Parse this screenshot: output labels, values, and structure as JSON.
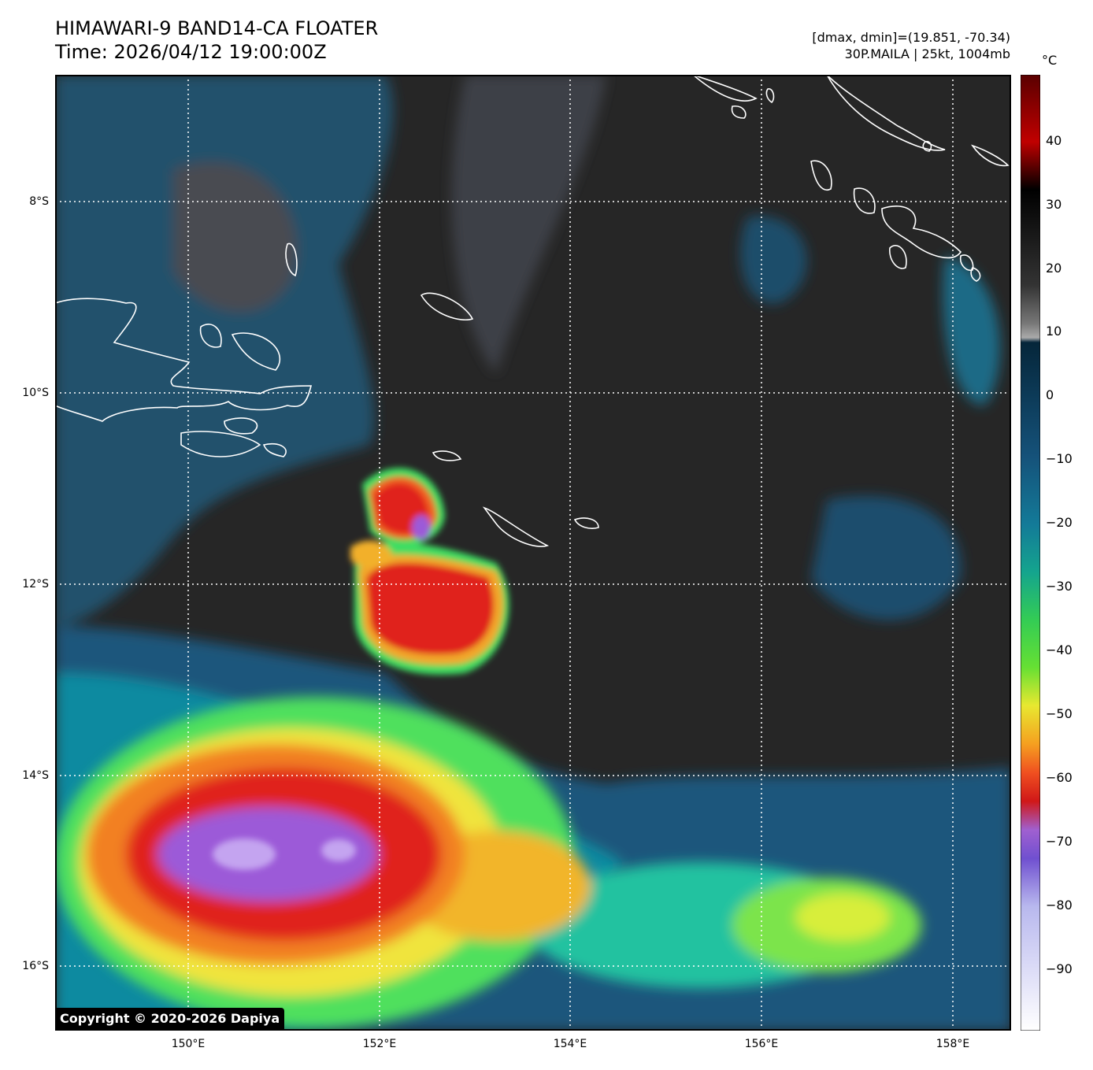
{
  "title": {
    "line1": "HIMAWARI-9 BAND14-CA FLOATER",
    "line2": "Time: 2026/04/12 19:00:00Z"
  },
  "info": {
    "line1": "[dmax, dmin]=(19.851, -70.34)",
    "line2": "30P.MAILA | 25kt, 1004mb"
  },
  "colorbar": {
    "unit": "°C",
    "ticks": [
      "40",
      "30",
      "20",
      "10",
      "0",
      "−10",
      "−20",
      "−30",
      "−40",
      "−50",
      "−60",
      "−70",
      "−80",
      "−90"
    ],
    "min": -100,
    "max": 50
  },
  "lat_labels": [
    "8°S",
    "10°S",
    "12°S",
    "14°S",
    "16°S"
  ],
  "lon_labels": [
    "150°E",
    "152°E",
    "154°E",
    "156°E",
    "158°E"
  ],
  "copyright": "Copyright © 2020-2026 Dapiya"
}
